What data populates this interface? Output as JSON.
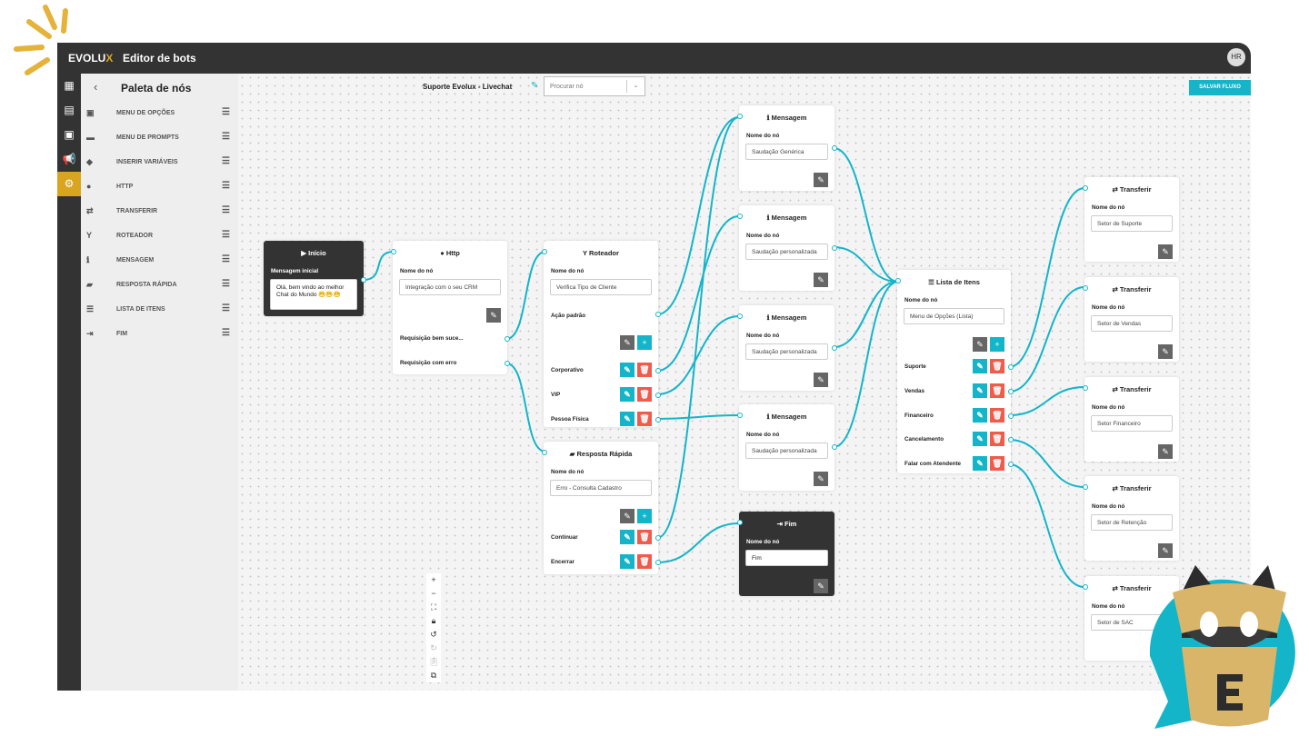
{
  "header": {
    "logo": "evolux",
    "title": "Editor de bots",
    "avatar": "HR"
  },
  "rail": [
    "dashboard-icon",
    "report-icon",
    "contacts-icon",
    "campaign-icon",
    "settings-icon"
  ],
  "palette": {
    "title": "Paleta de nós",
    "items": [
      {
        "label": "MENU DE OPÇÕES",
        "icon": "menu-options-icon"
      },
      {
        "label": "MENU DE PROMPTS",
        "icon": "prompt-icon"
      },
      {
        "label": "INSERIR VARIÁVEIS",
        "icon": "tag-icon"
      },
      {
        "label": "HTTP",
        "icon": "globe-icon"
      },
      {
        "label": "TRANSFERIR",
        "icon": "transfer-icon"
      },
      {
        "label": "ROTEADOR",
        "icon": "router-icon"
      },
      {
        "label": "MENSAGEM",
        "icon": "info-icon"
      },
      {
        "label": "RESPOSTA RÁPIDA",
        "icon": "chat-icon"
      },
      {
        "label": "LISTA DE ITENS",
        "icon": "list-icon"
      },
      {
        "label": "FIM",
        "icon": "exit-icon"
      }
    ]
  },
  "toolbar": {
    "flow_name": "Suporte Evolux - Livechat",
    "search_placeholder": "Procurar nó",
    "save": "SALVAR FLUXO"
  },
  "colors": {
    "accent": "#14b5c9",
    "brand": "#d9a521",
    "danger": "#f05b4c",
    "dark": "#333333"
  },
  "nodes": {
    "inicio": {
      "title": "Início",
      "label": "Mensagem inicial",
      "value": "Olá, bem vindo ao melhor Chat do Mundo 😁😁😁"
    },
    "http": {
      "title": "Http",
      "label": "Nome do nó",
      "value": "Integração com o seu CRM",
      "outputs": [
        "Requisição bem suce...",
        "Requisição com erro"
      ]
    },
    "roteador": {
      "title": "Roteador",
      "label": "Nome do nó",
      "value": "Verifica Tipo de Cliente",
      "default": "Ação padrão",
      "options": [
        "Corporativo",
        "VIP",
        "Pessoa Física"
      ]
    },
    "resposta": {
      "title": "Resposta Rápida",
      "label": "Nome do nó",
      "value": "Erro - Consulta Cadastro",
      "options": [
        "Continuar",
        "Encerrar"
      ]
    },
    "msg1": {
      "title": "Mensagem",
      "label": "Nome do nó",
      "value": "Saudação Genérica"
    },
    "msg2": {
      "title": "Mensagem",
      "label": "Nome do nó",
      "value": "Saudação personalizada"
    },
    "msg3": {
      "title": "Mensagem",
      "label": "Nome do nó",
      "value": "Saudação personalizada"
    },
    "msg4": {
      "title": "Mensagem",
      "label": "Nome do nó",
      "value": "Saudação personalizada"
    },
    "fim": {
      "title": "Fim",
      "label": "Nome do nó",
      "value": "Fim"
    },
    "lista": {
      "title": "Lista de Itens",
      "label": "Nome do nó",
      "value": "Menu de Opções (Lista)",
      "options": [
        "Suporte",
        "Vendas",
        "Financeiro",
        "Cancelamento",
        "Falar com Atendente"
      ]
    },
    "t1": {
      "title": "Transferir",
      "label": "Nome do nó",
      "value": "Setor de Suporte"
    },
    "t2": {
      "title": "Transferir",
      "label": "Nome do nó",
      "value": "Setor de Vendas"
    },
    "t3": {
      "title": "Transferir",
      "label": "Nome do nó",
      "value": "Setor Financeiro"
    },
    "t4": {
      "title": "Transferir",
      "label": "Nome do nó",
      "value": "Setor de Retenção"
    },
    "t5": {
      "title": "Transferir",
      "label": "Nome do nó",
      "value": "Setor de SAC"
    }
  },
  "canvas_controls": [
    "zoom-in",
    "zoom-out",
    "fit-view",
    "lock",
    "undo",
    "redo",
    "paste",
    "copy"
  ]
}
